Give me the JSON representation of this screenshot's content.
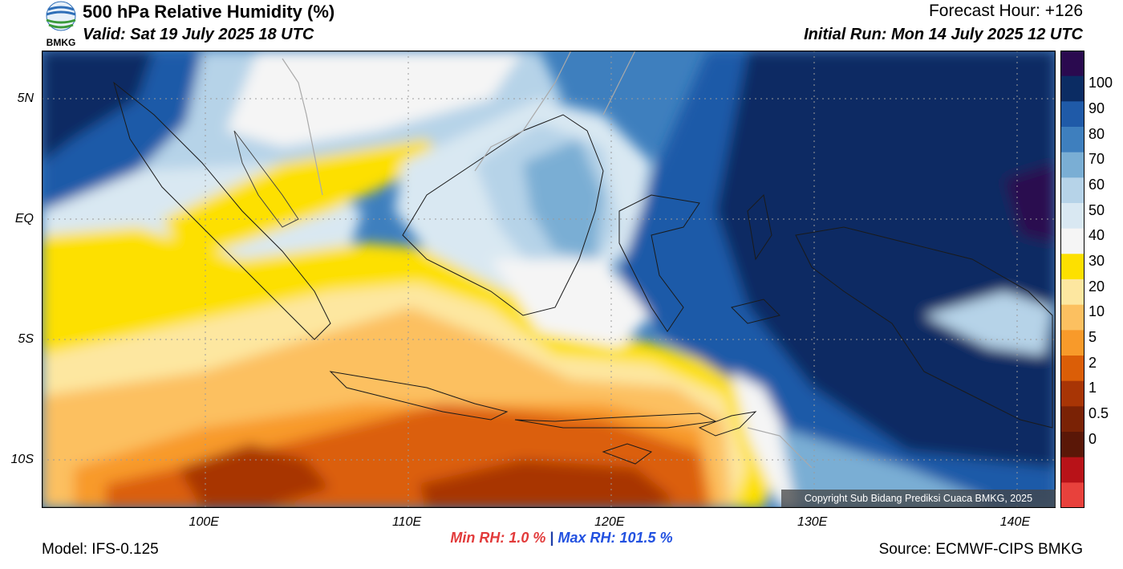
{
  "header": {
    "title": "500 hPa Relative Humidity (%)",
    "valid": "Valid: Sat 19 July 2025 18 UTC",
    "forecast_hour": "Forecast Hour: +126",
    "initial_run": "Initial Run: Mon 14 July 2025 12 UTC",
    "logo_text": "BMKG"
  },
  "map": {
    "lon_range": [
      92,
      142
    ],
    "lat_range": [
      -12,
      7
    ],
    "x_ticks": [
      "100E",
      "110E",
      "120E",
      "130E",
      "140E"
    ],
    "y_ticks": [
      "5N",
      "EQ",
      "5S",
      "10S"
    ],
    "gridlines": true,
    "copyright": "Copyright Sub Bidang Prediksi Cuaca BMKG, 2025"
  },
  "colorbar": {
    "labels": [
      "100",
      "90",
      "80",
      "70",
      "60",
      "50",
      "40",
      "30",
      "20",
      "10",
      "5",
      "2",
      "1",
      "0.5",
      "0"
    ],
    "colors": [
      "#2a0a4f",
      "#0b2c63",
      "#1f5aa8",
      "#3e7fbe",
      "#7aaed4",
      "#b6d3e8",
      "#d9e8f2",
      "#f5f5f5",
      "#fde000",
      "#fde7a0",
      "#fcc060",
      "#f89a2a",
      "#db5e07",
      "#a83505",
      "#7a2205",
      "#5a1707",
      "#b81218",
      "#e8413c"
    ]
  },
  "footer": {
    "model": "Model: IFS-0.125",
    "source": "Source: ECMWF-CIPS BMKG",
    "min_rh": "Min RH:   1.0 %",
    "separator": "|",
    "max_rh": "Max RH: 101.5 %"
  }
}
